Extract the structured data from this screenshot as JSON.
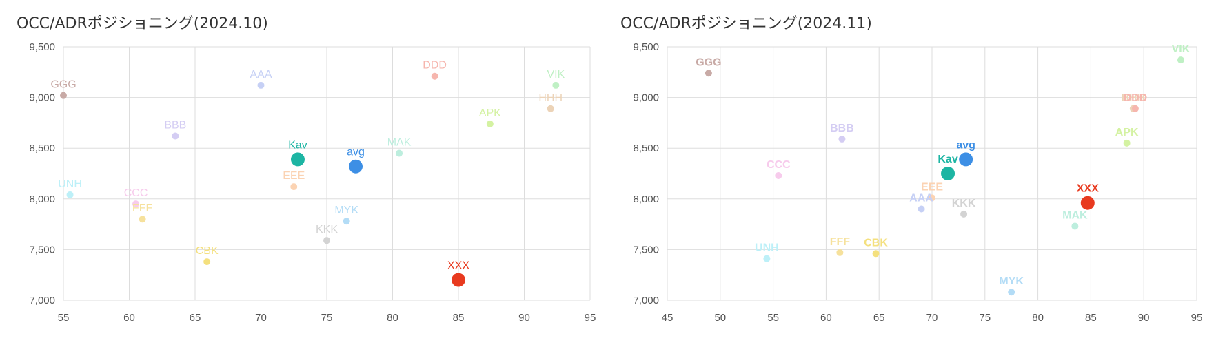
{
  "chart_data": [
    {
      "type": "scatter",
      "title": "OCC/ADRポジショニング(2024.10)",
      "xlim": [
        55,
        95
      ],
      "ylim": [
        7000,
        9500
      ],
      "xticks": [
        "55",
        "60",
        "65",
        "70",
        "75",
        "80",
        "85",
        "90",
        "95"
      ],
      "yticks": [
        "9,500",
        "9,000",
        "8,500",
        "8,000",
        "7,500",
        "7,000"
      ],
      "points": [
        {
          "label": "GGG",
          "x": 55.0,
          "y": 9020,
          "color": "#c8aaa6",
          "big": false
        },
        {
          "label": "AAA",
          "x": 70.0,
          "y": 9120,
          "color": "#c6d0f5",
          "big": false
        },
        {
          "label": "DDD",
          "x": 83.2,
          "y": 9210,
          "color": "#f6b6ae",
          "big": false
        },
        {
          "label": "VIK",
          "x": 92.4,
          "y": 9120,
          "color": "#bff0c4",
          "big": false
        },
        {
          "label": "HHH",
          "x": 92.0,
          "y": 8890,
          "color": "#ecd3b7",
          "big": false
        },
        {
          "label": "APK",
          "x": 87.4,
          "y": 8740,
          "color": "#d4f2a2",
          "big": false
        },
        {
          "label": "BBB",
          "x": 63.5,
          "y": 8620,
          "color": "#d4cdf3",
          "big": false
        },
        {
          "label": "MAK",
          "x": 80.5,
          "y": 8450,
          "color": "#bdeede",
          "big": false
        },
        {
          "label": "Kav",
          "x": 72.8,
          "y": 8390,
          "color": "#1db5a3",
          "big": true
        },
        {
          "label": "avg",
          "x": 77.2,
          "y": 8320,
          "color": "#3d8fe5",
          "big": true
        },
        {
          "label": "EEE",
          "x": 72.5,
          "y": 8120,
          "color": "#fbd3b3",
          "big": false
        },
        {
          "label": "UNH",
          "x": 55.5,
          "y": 8040,
          "color": "#bdf0f8",
          "big": false
        },
        {
          "label": "CCC",
          "x": 60.5,
          "y": 7950,
          "color": "#f7cbec",
          "big": false
        },
        {
          "label": "FFF",
          "x": 61.0,
          "y": 7800,
          "color": "#f6e19c",
          "big": false
        },
        {
          "label": "MYK",
          "x": 76.5,
          "y": 7780,
          "color": "#b3dcf6",
          "big": false
        },
        {
          "label": "KKK",
          "x": 75.0,
          "y": 7590,
          "color": "#d3d3d3",
          "big": false
        },
        {
          "label": "CBK",
          "x": 65.9,
          "y": 7380,
          "color": "#f4e07e",
          "big": false
        },
        {
          "label": "XXX",
          "x": 85.0,
          "y": 7200,
          "color": "#e83a1f",
          "big": true
        }
      ]
    },
    {
      "type": "scatter",
      "title": "OCC/ADRポジショニング(2024.11)",
      "xlim": [
        45,
        95
      ],
      "ylim": [
        7000,
        9500
      ],
      "xticks": [
        "45",
        "50",
        "55",
        "60",
        "65",
        "70",
        "75",
        "80",
        "85",
        "90",
        "95"
      ],
      "yticks": [
        "9,500",
        "9,000",
        "8,500",
        "8,000",
        "7,500",
        "7,000"
      ],
      "points": [
        {
          "label": "GGG",
          "x": 48.9,
          "y": 9240,
          "color": "#c8aaa6",
          "big": false
        },
        {
          "label": "VIK",
          "x": 93.5,
          "y": 9370,
          "color": "#bff0c4",
          "big": false
        },
        {
          "label": "HHH",
          "x": 89.0,
          "y": 8890,
          "color": "#ecd3b7",
          "big": false
        },
        {
          "label": "DDD",
          "x": 89.2,
          "y": 8890,
          "color": "#f6b6ae",
          "big": false
        },
        {
          "label": "BBB",
          "x": 61.5,
          "y": 8590,
          "color": "#d4cdf3",
          "big": false
        },
        {
          "label": "APK",
          "x": 88.4,
          "y": 8550,
          "color": "#d4f2a2",
          "big": false
        },
        {
          "label": "avg",
          "x": 73.2,
          "y": 8390,
          "color": "#3d8fe5",
          "big": true
        },
        {
          "label": "Kav",
          "x": 71.5,
          "y": 8250,
          "color": "#1db5a3",
          "big": true
        },
        {
          "label": "CCC",
          "x": 55.5,
          "y": 8230,
          "color": "#f7cbec",
          "big": false
        },
        {
          "label": "EEE",
          "x": 70.0,
          "y": 8010,
          "color": "#fbd3b3",
          "big": false
        },
        {
          "label": "XXX",
          "x": 84.7,
          "y": 7960,
          "color": "#e83a1f",
          "big": true
        },
        {
          "label": "AAA",
          "x": 69.0,
          "y": 7900,
          "color": "#c6d0f5",
          "big": false
        },
        {
          "label": "KKK",
          "x": 73.0,
          "y": 7850,
          "color": "#d3d3d3",
          "big": false
        },
        {
          "label": "MAK",
          "x": 83.5,
          "y": 7730,
          "color": "#bdeede",
          "big": false
        },
        {
          "label": "FFF",
          "x": 61.3,
          "y": 7470,
          "color": "#f6e19c",
          "big": false
        },
        {
          "label": "CBK",
          "x": 64.7,
          "y": 7460,
          "color": "#f4e07e",
          "big": false
        },
        {
          "label": "UNH",
          "x": 54.4,
          "y": 7410,
          "color": "#bdf0f8",
          "big": false
        },
        {
          "label": "MYK",
          "x": 77.5,
          "y": 7080,
          "color": "#b3dcf6",
          "big": false
        }
      ]
    }
  ]
}
